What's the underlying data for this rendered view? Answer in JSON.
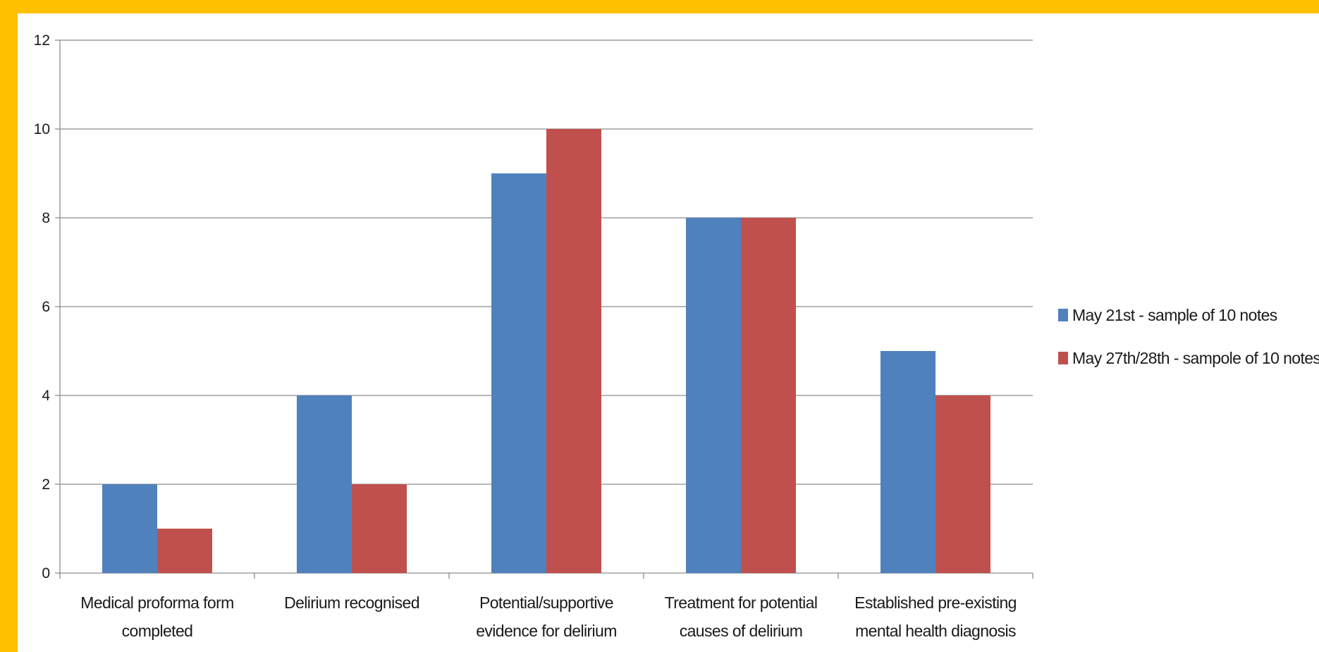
{
  "chart_data": {
    "type": "bar",
    "categories": [
      [
        "Medical proforma form",
        "completed"
      ],
      [
        "Delirium recognised"
      ],
      [
        "Potential/supportive",
        "evidence for delirium"
      ],
      [
        "Treatment for potential",
        "causes of delirium"
      ],
      [
        "Established pre-existing",
        "mental health diagnosis"
      ]
    ],
    "series": [
      {
        "name": "May 21st - sample of 10 notes",
        "color": "#4F81BD",
        "values": [
          2,
          4,
          9,
          8,
          5
        ]
      },
      {
        "name": "May 27th/28th - sampole of 10 notes",
        "color": "#C0504D",
        "values": [
          1,
          2,
          10,
          8,
          4
        ]
      }
    ],
    "yticks": [
      0,
      2,
      4,
      6,
      8,
      10,
      12
    ],
    "ylim": [
      0,
      12
    ],
    "grid": true,
    "legend_position": "right"
  }
}
